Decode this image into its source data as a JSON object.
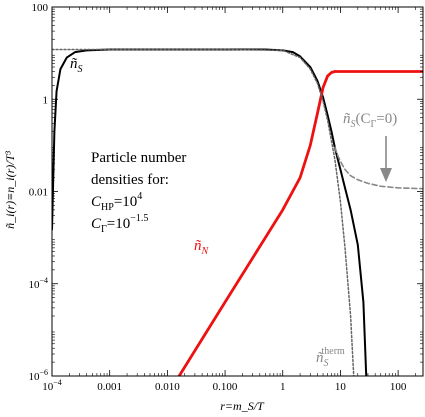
{
  "chart_data": {
    "type": "line",
    "xlabel": "r=m_S/T",
    "ylabel": "ñ_i(r)≡n_i(r)/T³",
    "xscale": "log",
    "yscale": "log",
    "xlim": [
      0.0001,
      270
    ],
    "ylim": [
      1e-06,
      100
    ],
    "grid": false,
    "x_ticks": [
      {
        "value": 0.0001,
        "label": "10",
        "exp": "−4"
      },
      {
        "value": 0.001,
        "label": "0.001",
        "exp": ""
      },
      {
        "value": 0.01,
        "label": "0.010",
        "exp": ""
      },
      {
        "value": 0.1,
        "label": "0.100",
        "exp": ""
      },
      {
        "value": 1,
        "label": "1",
        "exp": ""
      },
      {
        "value": 10,
        "label": "10",
        "exp": ""
      },
      {
        "value": 100,
        "label": "100",
        "exp": ""
      }
    ],
    "y_ticks": [
      {
        "value": 1e-06,
        "label": "10",
        "exp": "−6"
      },
      {
        "value": 0.0001,
        "label": "10",
        "exp": "−4"
      },
      {
        "value": 0.01,
        "label": "0.01",
        "exp": ""
      },
      {
        "value": 1,
        "label": "1",
        "exp": ""
      },
      {
        "value": 100,
        "label": "100",
        "exp": ""
      }
    ],
    "series": [
      {
        "name": "ñ_S",
        "color": "#000000",
        "style": "solid",
        "points": [
          [
            0.0001,
            0.0015
          ],
          [
            0.00011,
            0.2
          ],
          [
            0.00012,
            1.5
          ],
          [
            0.00014,
            4.5
          ],
          [
            0.00018,
            8
          ],
          [
            0.00025,
            10.5
          ],
          [
            0.0004,
            11.5
          ],
          [
            0.001,
            12
          ],
          [
            0.01,
            12
          ],
          [
            0.1,
            12
          ],
          [
            0.5,
            12
          ],
          [
            1.0,
            11.5
          ],
          [
            1.5,
            10.5
          ],
          [
            2.0,
            8.5
          ],
          [
            3.0,
            5
          ],
          [
            4.0,
            2.5
          ],
          [
            5.0,
            1.1
          ],
          [
            6.0,
            0.45
          ],
          [
            7.0,
            0.2
          ],
          [
            8.0,
            0.09
          ],
          [
            9.0,
            0.05
          ],
          [
            10.0,
            0.03
          ],
          [
            12.0,
            0.012
          ],
          [
            15.0,
            0.004
          ],
          [
            20.0,
            0.0007
          ],
          [
            25.0,
            4e-05
          ],
          [
            28.0,
            1e-06
          ]
        ]
      },
      {
        "name": "ñ_N",
        "color": "#ee1111",
        "style": "solid",
        "points": [
          [
            0.016,
            1e-06
          ],
          [
            0.1,
            4e-05
          ],
          [
            0.5,
            0.001
          ],
          [
            1.0,
            0.004
          ],
          [
            2.0,
            0.02
          ],
          [
            3.0,
            0.1
          ],
          [
            4.0,
            0.5
          ],
          [
            5.0,
            1.8
          ],
          [
            6.0,
            3.2
          ],
          [
            7.0,
            3.8
          ],
          [
            8.0,
            4.0
          ],
          [
            10.0,
            4.0
          ],
          [
            50.0,
            4.0
          ],
          [
            270,
            4.0
          ]
        ]
      },
      {
        "name": "ñ_S(C_Γ=0)",
        "color": "#888888",
        "style": "dashed",
        "points": [
          [
            8.0,
            0.09
          ],
          [
            9.0,
            0.06
          ],
          [
            10.0,
            0.045
          ],
          [
            12.0,
            0.03
          ],
          [
            15.0,
            0.022
          ],
          [
            20.0,
            0.018
          ],
          [
            30.0,
            0.015
          ],
          [
            50.0,
            0.013
          ],
          [
            100.0,
            0.012
          ],
          [
            270,
            0.0115
          ]
        ]
      },
      {
        "name": "ñ_S^therm",
        "color": "#666666",
        "style": "dotted",
        "points": [
          [
            0.0001,
            12
          ],
          [
            0.001,
            12
          ],
          [
            0.01,
            12
          ],
          [
            0.1,
            12
          ],
          [
            1.0,
            11.5
          ],
          [
            2.0,
            8
          ],
          [
            3.0,
            4.5
          ],
          [
            4.0,
            2.2
          ],
          [
            5.0,
            0.9
          ],
          [
            6.0,
            0.35
          ],
          [
            8.0,
            0.05
          ],
          [
            10.0,
            0.006
          ],
          [
            12.0,
            0.0006
          ],
          [
            15.0,
            2e-05
          ],
          [
            17.0,
            1e-06
          ]
        ]
      }
    ],
    "annotations": {
      "label_nS": {
        "base": "ñ",
        "sub": "S"
      },
      "label_nN": {
        "base": "ñ",
        "sub": "N"
      },
      "label_nS_CG0": {
        "base": "ñ",
        "sub": "S",
        "suffix": "(C",
        "subG": "Γ",
        "tail": "=0)"
      },
      "label_therm": {
        "base": "ñ",
        "sub": "S",
        "sup": "therm"
      },
      "textbox": {
        "line1": "Particle number",
        "line2": "densities for:",
        "line3_base": "C",
        "line3_sub": "HP",
        "line3_eq": "=10",
        "line3_exp": "4",
        "line4_base": "C",
        "line4_sub": "Γ",
        "line4_eq": "=10",
        "line4_exp": "−1.5"
      }
    }
  }
}
